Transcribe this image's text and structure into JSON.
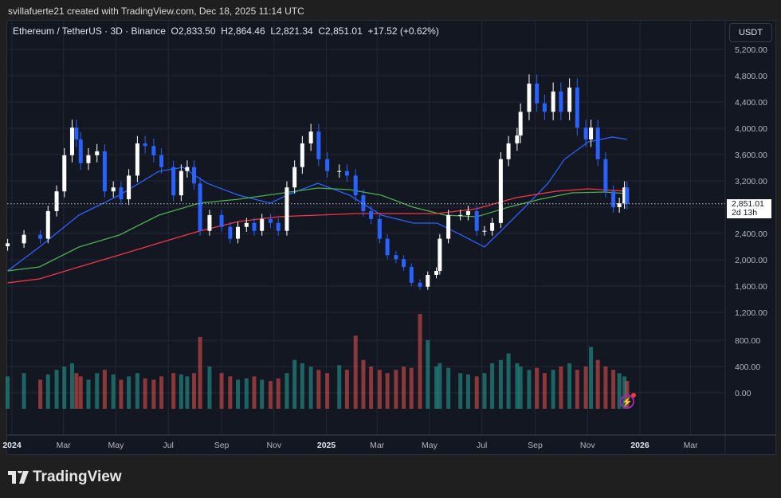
{
  "header": {
    "credit": "svillafuerte21 created with TradingView.com, Dec 18, 2025 11:14 UTC"
  },
  "legend": {
    "symbol": "Ethereum / TetherUS · 3D · Binance",
    "open": "O2,833.50",
    "high": "H2,864.46",
    "low": "L2,821.34",
    "close": "C2,851.01",
    "change": "+17.52 (+0.62%)"
  },
  "price_axis": {
    "unit": "USDT",
    "current_price": "2,851.01",
    "countdown": "2d 13h"
  },
  "brand": {
    "name": "TradingView"
  },
  "colors": {
    "up_candle": "#ffffff",
    "down_candle": "#2962ff",
    "up_volume": "#26a69a",
    "down_volume": "#ef5350",
    "ma_blue": "#2962ff",
    "ma_green": "#4caf50",
    "ma_red": "#f23645",
    "background": "#131722"
  },
  "icons": {
    "alert": "lightning-icon",
    "logo": "tradingview-logo-icon"
  },
  "chart_data": {
    "type": "candlestick",
    "price_ticks": [
      "5,200.00",
      "4,800.00",
      "4,400.00",
      "4,000.00",
      "3,600.00",
      "3,200.00",
      "2,400.00",
      "2,000.00",
      "1,600.00",
      "1,200.00"
    ],
    "price_tick_values": [
      5200,
      4800,
      4400,
      4000,
      3600,
      3200,
      2400,
      2000,
      1600,
      1200
    ],
    "volume_ticks": [
      "800.00",
      "400.00",
      "0.00"
    ],
    "volume_tick_values": [
      800,
      400,
      0
    ],
    "time_ticks": [
      {
        "label": "2024",
        "date": "2024-01-01",
        "bold": true
      },
      {
        "label": "Mar",
        "date": "2024-03-01"
      },
      {
        "label": "May",
        "date": "2024-05-01"
      },
      {
        "label": "Jul",
        "date": "2024-07-01"
      },
      {
        "label": "Sep",
        "date": "2024-09-01"
      },
      {
        "label": "Nov",
        "date": "2024-11-01"
      },
      {
        "label": "2025",
        "date": "2025-01-01",
        "bold": true
      },
      {
        "label": "Mar",
        "date": "2025-03-01"
      },
      {
        "label": "May",
        "date": "2025-05-01"
      },
      {
        "label": "Jul",
        "date": "2025-07-01"
      },
      {
        "label": "Sep",
        "date": "2025-09-01"
      },
      {
        "label": "Nov",
        "date": "2025-11-01"
      },
      {
        "label": "2026",
        "date": "2026-01-01",
        "bold": true
      },
      {
        "label": "Mar",
        "date": "2026-03-01"
      }
    ],
    "ylim": [
      1000,
      5400
    ],
    "last_price": 2851.01,
    "dates": [
      "2023-12-27",
      "2024-01-15",
      "2024-02-03",
      "2024-02-12",
      "2024-02-22",
      "2024-03-02",
      "2024-03-11",
      "2024-03-16",
      "2024-03-21",
      "2024-03-30",
      "2024-04-09",
      "2024-04-18",
      "2024-04-28",
      "2024-05-07",
      "2024-05-16",
      "2024-05-26",
      "2024-06-04",
      "2024-06-14",
      "2024-06-23",
      "2024-07-07",
      "2024-07-16",
      "2024-07-23",
      "2024-07-31",
      "2024-08-07",
      "2024-08-18",
      "2024-09-01",
      "2024-09-11",
      "2024-09-20",
      "2024-09-30",
      "2024-10-09",
      "2024-10-18",
      "2024-10-28",
      "2024-11-06",
      "2024-11-16",
      "2024-11-25",
      "2024-12-04",
      "2024-12-14",
      "2024-12-23",
      "2025-01-02",
      "2025-01-16",
      "2025-01-25",
      "2025-02-04",
      "2025-02-13",
      "2025-02-22",
      "2025-03-04",
      "2025-03-13",
      "2025-03-23",
      "2025-04-01",
      "2025-04-10",
      "2025-04-20",
      "2025-04-29",
      "2025-05-09",
      "2025-05-13",
      "2025-05-23",
      "2025-06-06",
      "2025-06-15",
      "2025-06-25",
      "2025-07-04",
      "2025-07-13",
      "2025-07-23",
      "2025-08-01",
      "2025-08-11",
      "2025-08-15",
      "2025-08-25",
      "2025-09-03",
      "2025-09-12",
      "2025-09-22",
      "2025-10-01",
      "2025-10-11",
      "2025-10-20",
      "2025-10-30",
      "2025-11-05",
      "2025-11-13",
      "2025-11-22",
      "2025-12-01",
      "2025-12-08",
      "2025-12-14",
      "2025-12-17"
    ],
    "close": [
      2250,
      2380,
      2320,
      2740,
      3040,
      3590,
      4010,
      3830,
      3470,
      3590,
      3650,
      3040,
      3100,
      2920,
      3280,
      3770,
      3730,
      3590,
      3410,
      2980,
      3350,
      3410,
      3160,
      2440,
      2680,
      2500,
      2320,
      2500,
      2560,
      2440,
      2620,
      2560,
      2440,
      3100,
      3410,
      3770,
      3950,
      3530,
      3350,
      3350,
      3280,
      2980,
      2740,
      2620,
      2320,
      2070,
      2010,
      1890,
      1650,
      1590,
      1770,
      1830,
      2320,
      2680,
      2680,
      2740,
      2440,
      2440,
      2560,
      3530,
      3770,
      3890,
      4250,
      4680,
      4380,
      4250,
      4560,
      4250,
      4620,
      4010,
      3830,
      4010,
      3530,
      3040,
      2800,
      2860,
      3100,
      2851.01
    ],
    "volume": [
      250,
      300,
      200,
      280,
      350,
      400,
      450,
      300,
      250,
      200,
      300,
      350,
      280,
      200,
      250,
      300,
      220,
      200,
      250,
      300,
      280,
      250,
      300,
      850,
      400,
      300,
      250,
      200,
      220,
      250,
      200,
      180,
      220,
      300,
      500,
      450,
      400,
      350,
      300,
      420,
      350,
      870,
      500,
      400,
      350,
      300,
      350,
      400,
      380,
      1200,
      800,
      400,
      450,
      380,
      300,
      280,
      250,
      300,
      450,
      500,
      600,
      450,
      400,
      350,
      380,
      300,
      350,
      400,
      450,
      350,
      400,
      700,
      500,
      400,
      350,
      300,
      250,
      180
    ],
    "moving_averages": [
      {
        "color": "#2962ff",
        "points": [
          [
            "2023-12-27",
            1831
          ],
          [
            "2024-02-02",
            2194
          ],
          [
            "2024-03-19",
            2679
          ],
          [
            "2024-05-05",
            2982
          ],
          [
            "2024-06-20",
            3346
          ],
          [
            "2024-07-18",
            3406
          ],
          [
            "2024-08-15",
            3164
          ],
          [
            "2024-09-21",
            2982
          ],
          [
            "2024-10-28",
            2861
          ],
          [
            "2024-11-16",
            2982
          ],
          [
            "2024-12-22",
            3164
          ],
          [
            "2025-01-28",
            2982
          ],
          [
            "2025-03-06",
            2679
          ],
          [
            "2025-04-12",
            2558
          ],
          [
            "2025-05-10",
            2558
          ],
          [
            "2025-06-07",
            2376
          ],
          [
            "2025-07-04",
            2194
          ],
          [
            "2025-07-23",
            2436
          ],
          [
            "2025-08-20",
            2800
          ],
          [
            "2025-09-16",
            3164
          ],
          [
            "2025-10-05",
            3527
          ],
          [
            "2025-11-02",
            3794
          ],
          [
            "2025-11-30",
            3867
          ],
          [
            "2025-12-17",
            3830
          ]
        ]
      },
      {
        "color": "#4caf50",
        "points": [
          [
            "2023-12-27",
            1831
          ],
          [
            "2024-02-02",
            1891
          ],
          [
            "2024-03-19",
            2194
          ],
          [
            "2024-05-05",
            2376
          ],
          [
            "2024-06-20",
            2679
          ],
          [
            "2024-08-06",
            2861
          ],
          [
            "2024-09-21",
            2921
          ],
          [
            "2024-11-06",
            3006
          ],
          [
            "2024-12-22",
            3091
          ],
          [
            "2025-01-28",
            3067
          ],
          [
            "2025-03-06",
            2982
          ],
          [
            "2025-04-12",
            2800
          ],
          [
            "2025-05-19",
            2679
          ],
          [
            "2025-06-25",
            2655
          ],
          [
            "2025-08-01",
            2800
          ],
          [
            "2025-09-07",
            2921
          ],
          [
            "2025-10-14",
            3018
          ],
          [
            "2025-11-21",
            3030
          ],
          [
            "2025-12-17",
            3006
          ]
        ]
      },
      {
        "color": "#f23645",
        "points": [
          [
            "2023-12-27",
            1649
          ],
          [
            "2024-02-02",
            1709
          ],
          [
            "2024-03-19",
            1891
          ],
          [
            "2024-05-05",
            2073
          ],
          [
            "2024-06-20",
            2255
          ],
          [
            "2024-08-06",
            2436
          ],
          [
            "2024-09-21",
            2582
          ],
          [
            "2024-11-06",
            2655
          ],
          [
            "2024-12-22",
            2679
          ],
          [
            "2025-02-06",
            2703
          ],
          [
            "2025-03-25",
            2703
          ],
          [
            "2025-05-10",
            2703
          ],
          [
            "2025-06-25",
            2776
          ],
          [
            "2025-08-10",
            2946
          ],
          [
            "2025-09-26",
            3043
          ],
          [
            "2025-11-02",
            3079
          ],
          [
            "2025-12-17",
            3043
          ]
        ]
      }
    ]
  }
}
